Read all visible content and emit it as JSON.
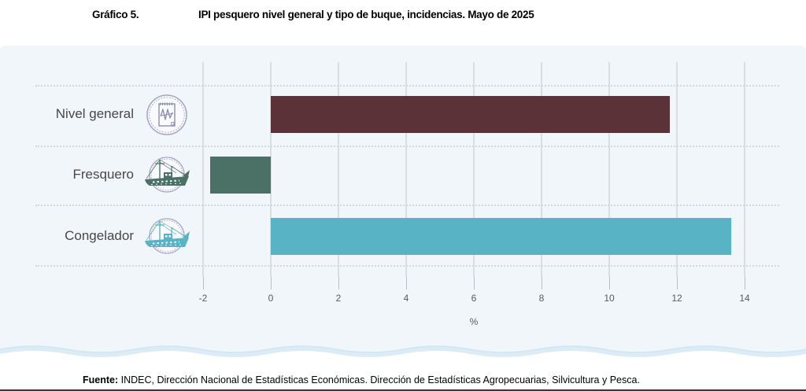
{
  "header": {
    "number_label": "Gráfico 5.",
    "title": "IPI pesquero nivel general y tipo de buque, incidencias. Mayo de 2025"
  },
  "chart_data": {
    "type": "bar",
    "orientation": "horizontal",
    "title": "IPI pesquero nivel general y tipo de buque, incidencias. Mayo de 2025",
    "categories": [
      "Nivel general",
      "Fresquero",
      "Congelador"
    ],
    "values": [
      11.8,
      -1.8,
      13.6
    ],
    "bar_colors": [
      "#5a3238",
      "#4b7065",
      "#58b4c4"
    ],
    "icons": [
      "chart-document-icon",
      "fresquero-ship-icon",
      "congelador-ship-icon"
    ],
    "xlabel": "%",
    "xlim": [
      -2,
      14
    ],
    "xticks": [
      -2,
      0,
      2,
      4,
      6,
      8,
      10,
      12,
      14
    ],
    "grid": "vertical-solid-and-horizontal-dotted",
    "legend": "none",
    "panel_background": "#f1f6fb",
    "icon_ring_color": "#a7a7c3"
  },
  "footer": {
    "source_label": "Fuente:",
    "source_text": " INDEC, Dirección Nacional de Estadísticas Económicas. Dirección de Estadísticas Agropecuarias, Silvicultura y Pesca."
  }
}
